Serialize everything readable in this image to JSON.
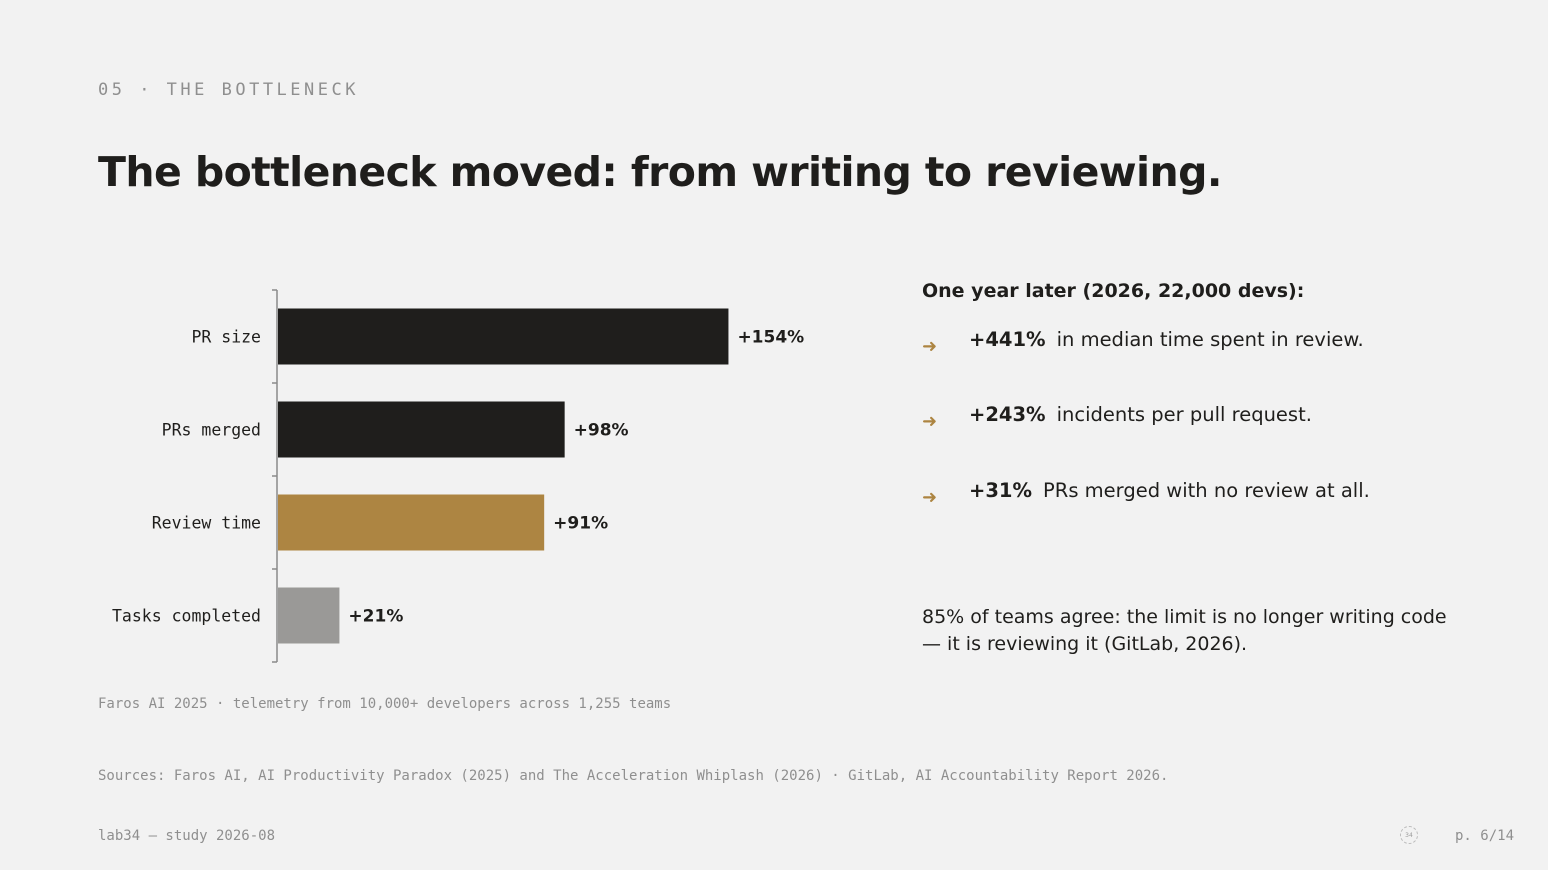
{
  "eyebrow": "05 · THE BOTTLENECK",
  "title": "The bottleneck moved: from writing to reviewing.",
  "chart_data": {
    "type": "bar",
    "orientation": "horizontal",
    "categories": [
      "PR size",
      "PRs merged",
      "Review time",
      "Tasks completed"
    ],
    "values": [
      154,
      98,
      91,
      21
    ],
    "value_labels": [
      "+154%",
      "+98%",
      "+91%",
      "+21%"
    ],
    "colors": [
      "#1f1e1c",
      "#1f1e1c",
      "#ad8542",
      "#9a9997"
    ],
    "xlim": [
      0,
      160
    ],
    "grid": false,
    "note": "Faros AI 2025 · telemetry from 10,000+ developers across 1,255 teams"
  },
  "panel": {
    "heading": "One year later (2026, 22,000 devs):",
    "stats": [
      {
        "value": "+441%",
        "text": "in median time spent in review."
      },
      {
        "value": "+243%",
        "text": "incidents per pull request."
      },
      {
        "value": "+31%",
        "text": "PRs merged with no review at all."
      }
    ],
    "arrow_icon": "arrow-right-icon",
    "arrow_glyph": "➜",
    "quote": "85% of teams agree: the limit is no longer writing code — it is reviewing it (GitLab, 2026)."
  },
  "sources": "Sources: Faros AI, AI Productivity Paradox (2025) and The Acceleration Whiplash (2026) · GitLab, AI Accountability Report 2026.",
  "footer": {
    "left": "lab34 — study 2026-08",
    "logo_text": "34",
    "page": "p. 6/14"
  }
}
